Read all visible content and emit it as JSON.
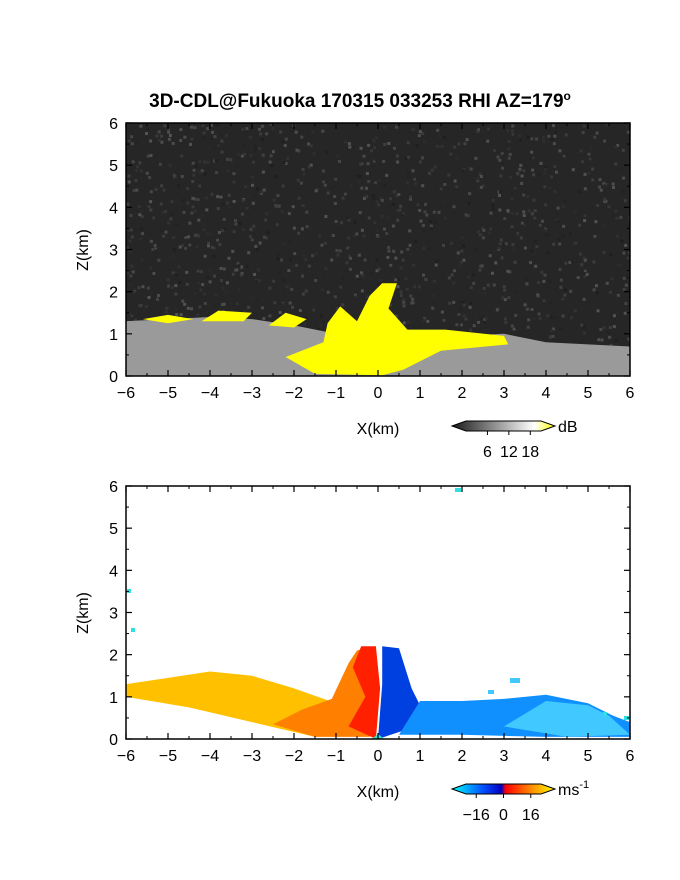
{
  "title": "3D-CDL@Fukuoka 170315 033253 RHI AZ=179",
  "title_degree": "o",
  "chart_data": [
    {
      "type": "heatmap",
      "variable": "reflectivity",
      "xlabel": "X(km)",
      "ylabel": "Z(km)",
      "xlim": [
        -6,
        6
      ],
      "ylim": [
        0,
        6
      ],
      "xticks": [
        "-6",
        "-5",
        "-4",
        "-3",
        "-2",
        "-1",
        "0",
        "1",
        "2",
        "3",
        "4",
        "5",
        "6"
      ],
      "yticks": [
        "0",
        "1",
        "2",
        "3",
        "4",
        "5",
        "6"
      ],
      "colorbar": {
        "unit": "dB",
        "ticks": [
          6,
          12,
          18
        ],
        "tick_labels": [
          "6",
          "12",
          "18"
        ],
        "range": [
          0,
          21
        ],
        "colors": [
          "#1a1a1a",
          "#ffffff",
          "#ffff00"
        ]
      },
      "regions": [
        {
          "name": "echo-envelope",
          "color": "#9a9a9a",
          "outline": [
            [
              -6,
              0
            ],
            [
              -6,
              1.3
            ],
            [
              -5,
              1.35
            ],
            [
              -4,
              1.4
            ],
            [
              -3,
              1.35
            ],
            [
              -2,
              1.2
            ],
            [
              -1,
              1.0
            ],
            [
              0,
              0.9
            ],
            [
              1,
              0.9
            ],
            [
              2,
              0.95
            ],
            [
              3,
              1.0
            ],
            [
              4,
              0.8
            ],
            [
              5,
              0.75
            ],
            [
              6,
              0.7
            ],
            [
              6,
              0
            ]
          ]
        },
        {
          "name": "strong-echo",
          "color": "#ffff00",
          "outline": [
            [
              -1.5,
              0.05
            ],
            [
              -2.2,
              0.45
            ],
            [
              -1.3,
              0.8
            ],
            [
              -1.2,
              1.25
            ],
            [
              -0.9,
              1.65
            ],
            [
              -0.5,
              1.3
            ],
            [
              -0.2,
              1.9
            ],
            [
              0.1,
              2.2
            ],
            [
              0.45,
              2.2
            ],
            [
              0.25,
              1.6
            ],
            [
              0.7,
              1.1
            ],
            [
              1.6,
              1.1
            ],
            [
              3.0,
              0.95
            ],
            [
              3.1,
              0.75
            ],
            [
              1.5,
              0.6
            ],
            [
              0.6,
              0.15
            ],
            [
              0.1,
              0.02
            ]
          ]
        },
        {
          "name": "echo-top-patch-left",
          "color": "#ffff00",
          "outline": [
            [
              -5.6,
              1.35
            ],
            [
              -5.0,
              1.45
            ],
            [
              -4.4,
              1.35
            ],
            [
              -5.0,
              1.25
            ]
          ]
        },
        {
          "name": "echo-top-patch-mid",
          "color": "#ffff00",
          "outline": [
            [
              -4.2,
              1.3
            ],
            [
              -3.8,
              1.55
            ],
            [
              -3.0,
              1.5
            ],
            [
              -3.2,
              1.3
            ]
          ]
        },
        {
          "name": "echo-top-patch-right",
          "color": "#ffff00",
          "outline": [
            [
              -2.6,
              1.2
            ],
            [
              -2.2,
              1.5
            ],
            [
              -1.7,
              1.35
            ],
            [
              -2.0,
              1.15
            ]
          ]
        }
      ]
    },
    {
      "type": "heatmap",
      "variable": "doppler-velocity",
      "xlabel": "X(km)",
      "ylabel": "Z(km)",
      "xlim": [
        -6,
        6
      ],
      "ylim": [
        0,
        6
      ],
      "xticks": [
        "-6",
        "-5",
        "-4",
        "-3",
        "-2",
        "-1",
        "0",
        "1",
        "2",
        "3",
        "4",
        "5",
        "6"
      ],
      "yticks": [
        "0",
        "1",
        "2",
        "3",
        "4",
        "5",
        "6"
      ],
      "colorbar": {
        "unit": "ms",
        "unit_exponent": "-1",
        "ticks": [
          -16,
          0,
          16
        ],
        "tick_labels": [
          "−16",
          "0",
          "16"
        ],
        "range": [
          -22,
          22
        ],
        "colors": [
          "#00ffff",
          "#0050ff",
          "#0000c0",
          "#ff0000",
          "#ff8000",
          "#ffff00"
        ]
      },
      "regions": [
        {
          "name": "positive-velocity-outer",
          "color": "#ffc000",
          "outline": [
            [
              -6,
              1.3
            ],
            [
              -5,
              1.45
            ],
            [
              -4,
              1.6
            ],
            [
              -3,
              1.5
            ],
            [
              -2,
              1.2
            ],
            [
              -1,
              0.85
            ],
            [
              -0.2,
              0.3
            ],
            [
              -1.5,
              0.05
            ],
            [
              -3.0,
              0.4
            ],
            [
              -4.5,
              0.75
            ],
            [
              -6,
              1.0
            ]
          ]
        },
        {
          "name": "positive-velocity-inner",
          "color": "#ff8000",
          "outline": [
            [
              -0.2,
              0.05
            ],
            [
              -1.5,
              0.05
            ],
            [
              -2.5,
              0.35
            ],
            [
              -1.8,
              0.7
            ],
            [
              -1.1,
              0.95
            ],
            [
              -0.7,
              1.8
            ],
            [
              -0.5,
              2.1
            ],
            [
              -0.1,
              2.2
            ],
            [
              -0.05,
              1.0
            ]
          ]
        },
        {
          "name": "positive-velocity-core",
          "color": "#ff2000",
          "outline": [
            [
              -0.05,
              0.0
            ],
            [
              -0.7,
              0.3
            ],
            [
              -0.3,
              1.0
            ],
            [
              -0.6,
              1.7
            ],
            [
              -0.4,
              2.2
            ],
            [
              -0.05,
              2.2
            ],
            [
              0.05,
              1.2
            ]
          ]
        },
        {
          "name": "negative-velocity-core",
          "color": "#0040e0",
          "outline": [
            [
              0.0,
              0.0
            ],
            [
              0.1,
              1.3
            ],
            [
              0.1,
              2.2
            ],
            [
              0.5,
              2.15
            ],
            [
              0.8,
              1.2
            ],
            [
              1.0,
              0.8
            ],
            [
              0.6,
              0.2
            ]
          ]
        },
        {
          "name": "negative-velocity-outer",
          "color": "#1090ff",
          "outline": [
            [
              0.5,
              0.1
            ],
            [
              1.0,
              0.9
            ],
            [
              2.0,
              0.9
            ],
            [
              3.0,
              0.95
            ],
            [
              4.0,
              1.05
            ],
            [
              5.0,
              0.85
            ],
            [
              5.6,
              0.55
            ],
            [
              6.0,
              0.4
            ],
            [
              6.0,
              0.05
            ],
            [
              4.0,
              0.05
            ],
            [
              2.0,
              0.1
            ]
          ]
        },
        {
          "name": "negative-velocity-edge",
          "color": "#40c8ff",
          "outline": [
            [
              3.0,
              0.3
            ],
            [
              4.0,
              0.9
            ],
            [
              5.0,
              0.8
            ],
            [
              5.5,
              0.55
            ],
            [
              6.0,
              0.1
            ],
            [
              4.5,
              0.05
            ]
          ]
        },
        {
          "name": "near-zero-velocity-base",
          "color": "#30e0d0",
          "outline": [
            [
              -0.15,
              0.0
            ],
            [
              0.0,
              0.12
            ],
            [
              0.15,
              0.0
            ]
          ]
        }
      ]
    }
  ]
}
